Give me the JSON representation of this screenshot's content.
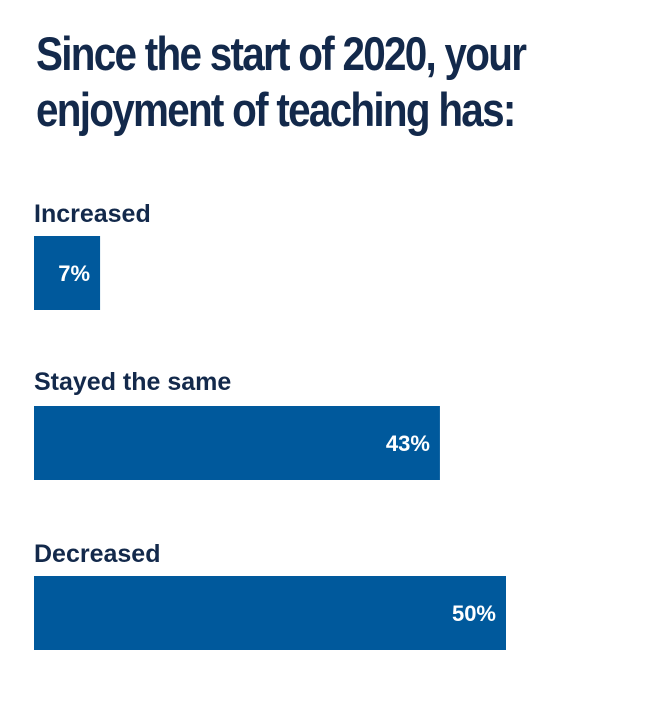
{
  "chart_data": {
    "type": "bar",
    "orientation": "horizontal",
    "title_lines": [
      "Since the start of 2020, your",
      "enjoyment of teaching has:"
    ],
    "categories": [
      "Increased",
      "Stayed the same",
      "Decreased"
    ],
    "values": [
      7,
      43,
      50
    ],
    "value_labels": [
      "7%",
      "43%",
      "50%"
    ],
    "unit": "%",
    "xlim": [
      0,
      50
    ],
    "grid": false,
    "legend": "none",
    "bar_color": "#00599c",
    "title_color": "#13294b",
    "value_label_color": "#ffffff"
  }
}
